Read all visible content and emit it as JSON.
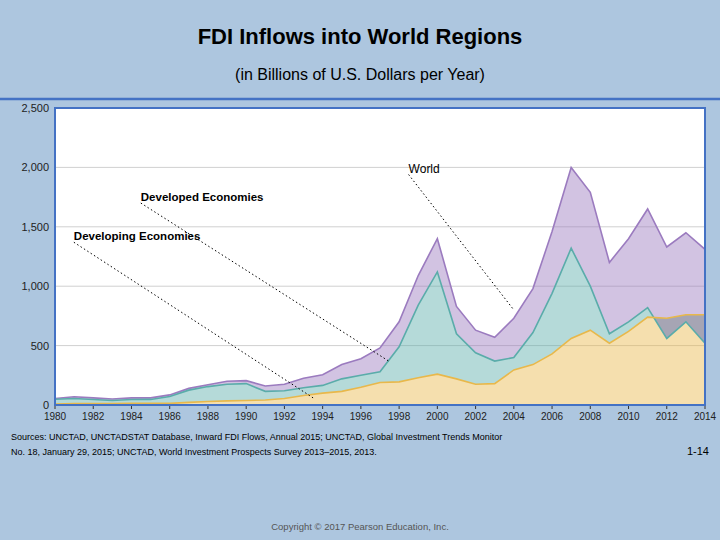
{
  "chart_data": {
    "type": "area",
    "title": "FDI Inflows into World Regions",
    "subtitle": "(in Billions of U.S. Dollars per Year)",
    "x": [
      1980,
      1981,
      1982,
      1983,
      1984,
      1985,
      1986,
      1987,
      1988,
      1989,
      1990,
      1991,
      1992,
      1993,
      1994,
      1995,
      1996,
      1997,
      1998,
      1999,
      2000,
      2001,
      2002,
      2003,
      2004,
      2005,
      2006,
      2007,
      2008,
      2009,
      2010,
      2011,
      2012,
      2013,
      2014
    ],
    "series": [
      {
        "color": "#9b7bbf",
        "values": [
          55,
          70,
          60,
          50,
          60,
          60,
          85,
          140,
          170,
          200,
          205,
          160,
          175,
          225,
          255,
          340,
          390,
          480,
          700,
          1090,
          1400,
          830,
          630,
          570,
          730,
          980,
          1460,
          2000,
          1790,
          1200,
          1400,
          1650,
          1330,
          1450,
          1310
        ]
      },
      {
        "color": "#5aacaa",
        "values": [
          48,
          55,
          46,
          38,
          46,
          47,
          72,
          125,
          155,
          175,
          180,
          115,
          120,
          145,
          165,
          220,
          250,
          280,
          490,
          840,
          1120,
          600,
          440,
          370,
          400,
          610,
          940,
          1320,
          1000,
          600,
          700,
          820,
          560,
          700,
          520
        ]
      },
      {
        "color": "#e8b84b",
        "values": [
          8,
          12,
          12,
          12,
          14,
          14,
          14,
          22,
          30,
          35,
          38,
          42,
          55,
          80,
          100,
          115,
          150,
          190,
          195,
          230,
          260,
          220,
          175,
          180,
          295,
          340,
          430,
          560,
          630,
          520,
          620,
          740,
          730,
          760,
          760
        ]
      }
    ],
    "xlim": [
      1980,
      2014
    ],
    "xticks": [
      1980,
      1982,
      1984,
      1986,
      1988,
      1990,
      1992,
      1994,
      1996,
      1998,
      2000,
      2002,
      2004,
      2006,
      2008,
      2010,
      2012,
      2014
    ],
    "ylim": [
      0,
      2500
    ],
    "yticks": [
      0,
      500,
      {
        "value": 1000,
        "label": "1,000"
      },
      {
        "value": 1500,
        "label": "1,500"
      },
      {
        "value": 2000,
        "label": "2,000"
      },
      {
        "value": 2500,
        "label": "2,500"
      }
    ],
    "grid": true,
    "annotations": [
      {
        "text": "World",
        "x": 2004,
        "y": 800
      },
      {
        "text": "Developed Economies",
        "x": 1997.5,
        "y": 365
      },
      {
        "text": "Developing Economies",
        "x": 1993.5,
        "y": 60
      }
    ],
    "source": [
      "Sources: UNCTAD, UNCTADSTAT Database, Inward FDI Flows, Annual 2015; UNCTAD, Global Investment Trends Monitor",
      "No. 18, January 29, 2015; UNCTAD, World Investment Prospects Survey 2013–2015, 2013."
    ],
    "slide_number": "1-14",
    "copyright": "Copyright © 2017 Pearson Education, Inc."
  }
}
